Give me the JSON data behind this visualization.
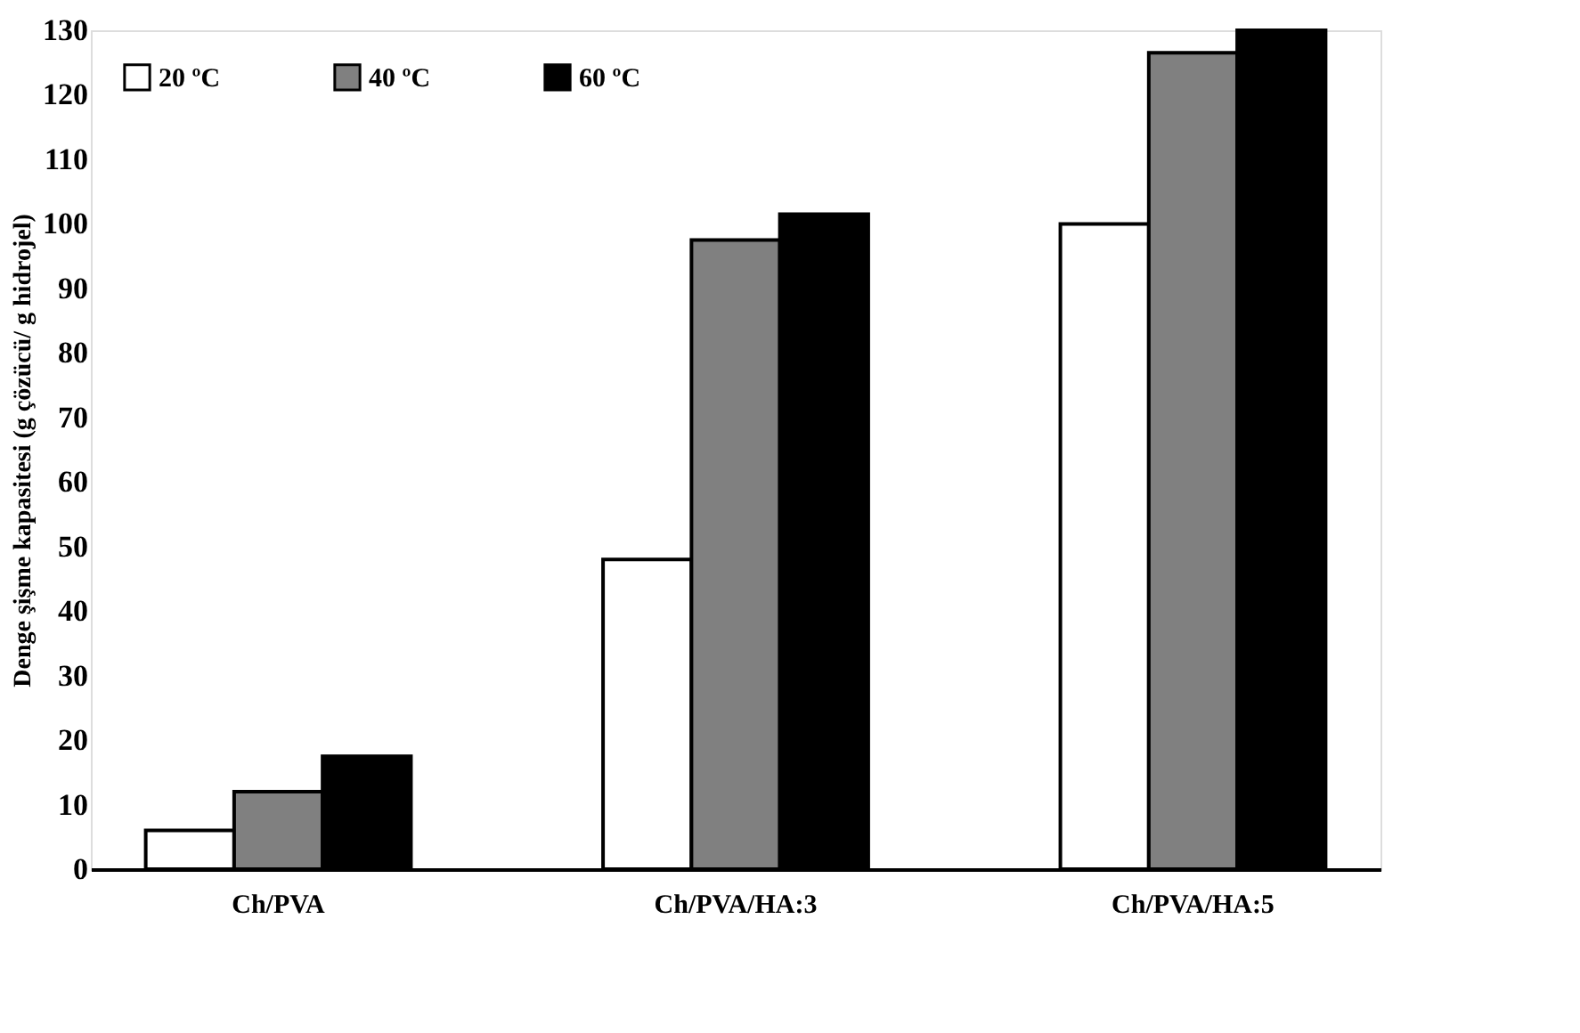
{
  "chart_data": {
    "type": "bar",
    "ylabel": "Denge şişme kapasitesi (g çözücü/ g hidrojel)",
    "categories": [
      "Ch/PVA",
      "Ch/PVA/HA:3",
      "Ch/PVA/HA:5"
    ],
    "series": [
      {
        "name": "20 ºC",
        "color": "#ffffff",
        "values": [
          6,
          48,
          100
        ]
      },
      {
        "name": "40 ºC",
        "color": "#808080",
        "values": [
          12,
          97.5,
          126.5
        ]
      },
      {
        "name": "60 ºC",
        "color": "#000000",
        "values": [
          17.5,
          101.5,
          130
        ]
      }
    ],
    "ylim": [
      0,
      130
    ],
    "yticks": [
      0,
      10,
      20,
      30,
      40,
      50,
      60,
      70,
      80,
      90,
      100,
      110,
      120,
      130
    ],
    "grid": false,
    "legend": "top left"
  }
}
